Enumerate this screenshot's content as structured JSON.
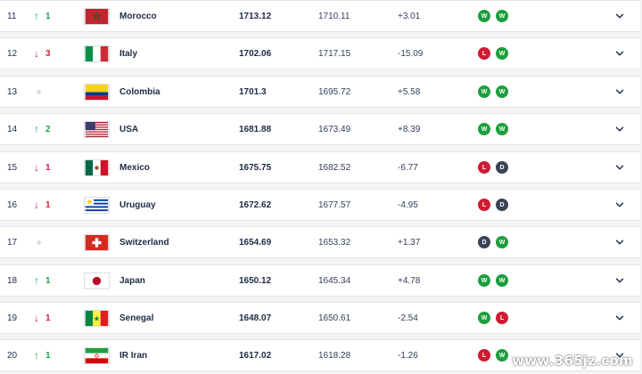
{
  "rankings": [
    {
      "rank": "11",
      "move": "up",
      "move_value": "1",
      "team": "Morocco",
      "flag": "morocco-flag",
      "points": "1713.12",
      "previous_points": "1710.11",
      "change": "+3.01",
      "results": [
        "W",
        "W"
      ]
    },
    {
      "rank": "12",
      "move": "down",
      "move_value": "3",
      "team": "Italy",
      "flag": "italy-flag",
      "points": "1702.06",
      "previous_points": "1717.15",
      "change": "-15.09",
      "results": [
        "L",
        "W"
      ]
    },
    {
      "rank": "13",
      "move": "same",
      "move_value": "",
      "team": "Colombia",
      "flag": "colombia-flag",
      "points": "1701.3",
      "previous_points": "1695.72",
      "change": "+5.58",
      "results": [
        "W",
        "W"
      ]
    },
    {
      "rank": "14",
      "move": "up",
      "move_value": "2",
      "team": "USA",
      "flag": "usa-flag",
      "points": "1681.88",
      "previous_points": "1673.49",
      "change": "+8.39",
      "results": [
        "W",
        "W"
      ]
    },
    {
      "rank": "15",
      "move": "down",
      "move_value": "1",
      "team": "Mexico",
      "flag": "mexico-flag",
      "points": "1675.75",
      "previous_points": "1682.52",
      "change": "-6.77",
      "results": [
        "L",
        "D"
      ]
    },
    {
      "rank": "16",
      "move": "down",
      "move_value": "1",
      "team": "Uruguay",
      "flag": "uruguay-flag",
      "points": "1672.62",
      "previous_points": "1677.57",
      "change": "-4.95",
      "results": [
        "L",
        "D"
      ]
    },
    {
      "rank": "17",
      "move": "same",
      "move_value": "",
      "team": "Switzerland",
      "flag": "switzerland-flag",
      "points": "1654.69",
      "previous_points": "1653.32",
      "change": "+1.37",
      "results": [
        "D",
        "W"
      ]
    },
    {
      "rank": "18",
      "move": "up",
      "move_value": "1",
      "team": "Japan",
      "flag": "japan-flag",
      "points": "1650.12",
      "previous_points": "1645.34",
      "change": "+4.78",
      "results": [
        "W",
        "W"
      ]
    },
    {
      "rank": "19",
      "move": "down",
      "move_value": "1",
      "team": "Senegal",
      "flag": "senegal-flag",
      "points": "1648.07",
      "previous_points": "1650.61",
      "change": "-2.54",
      "results": [
        "W",
        "L"
      ]
    },
    {
      "rank": "20",
      "move": "up",
      "move_value": "1",
      "team": "IR Iran",
      "flag": "iran-flag",
      "points": "1617.02",
      "previous_points": "1618.28",
      "change": "-1.26",
      "results": [
        "L",
        "W"
      ]
    }
  ],
  "watermark": "www.365jz.com",
  "colors": {
    "up": "#1fa34a",
    "down": "#d01f3c",
    "win": "#1e9e3e",
    "loss": "#cf1b32",
    "draw": "#3a4356"
  }
}
